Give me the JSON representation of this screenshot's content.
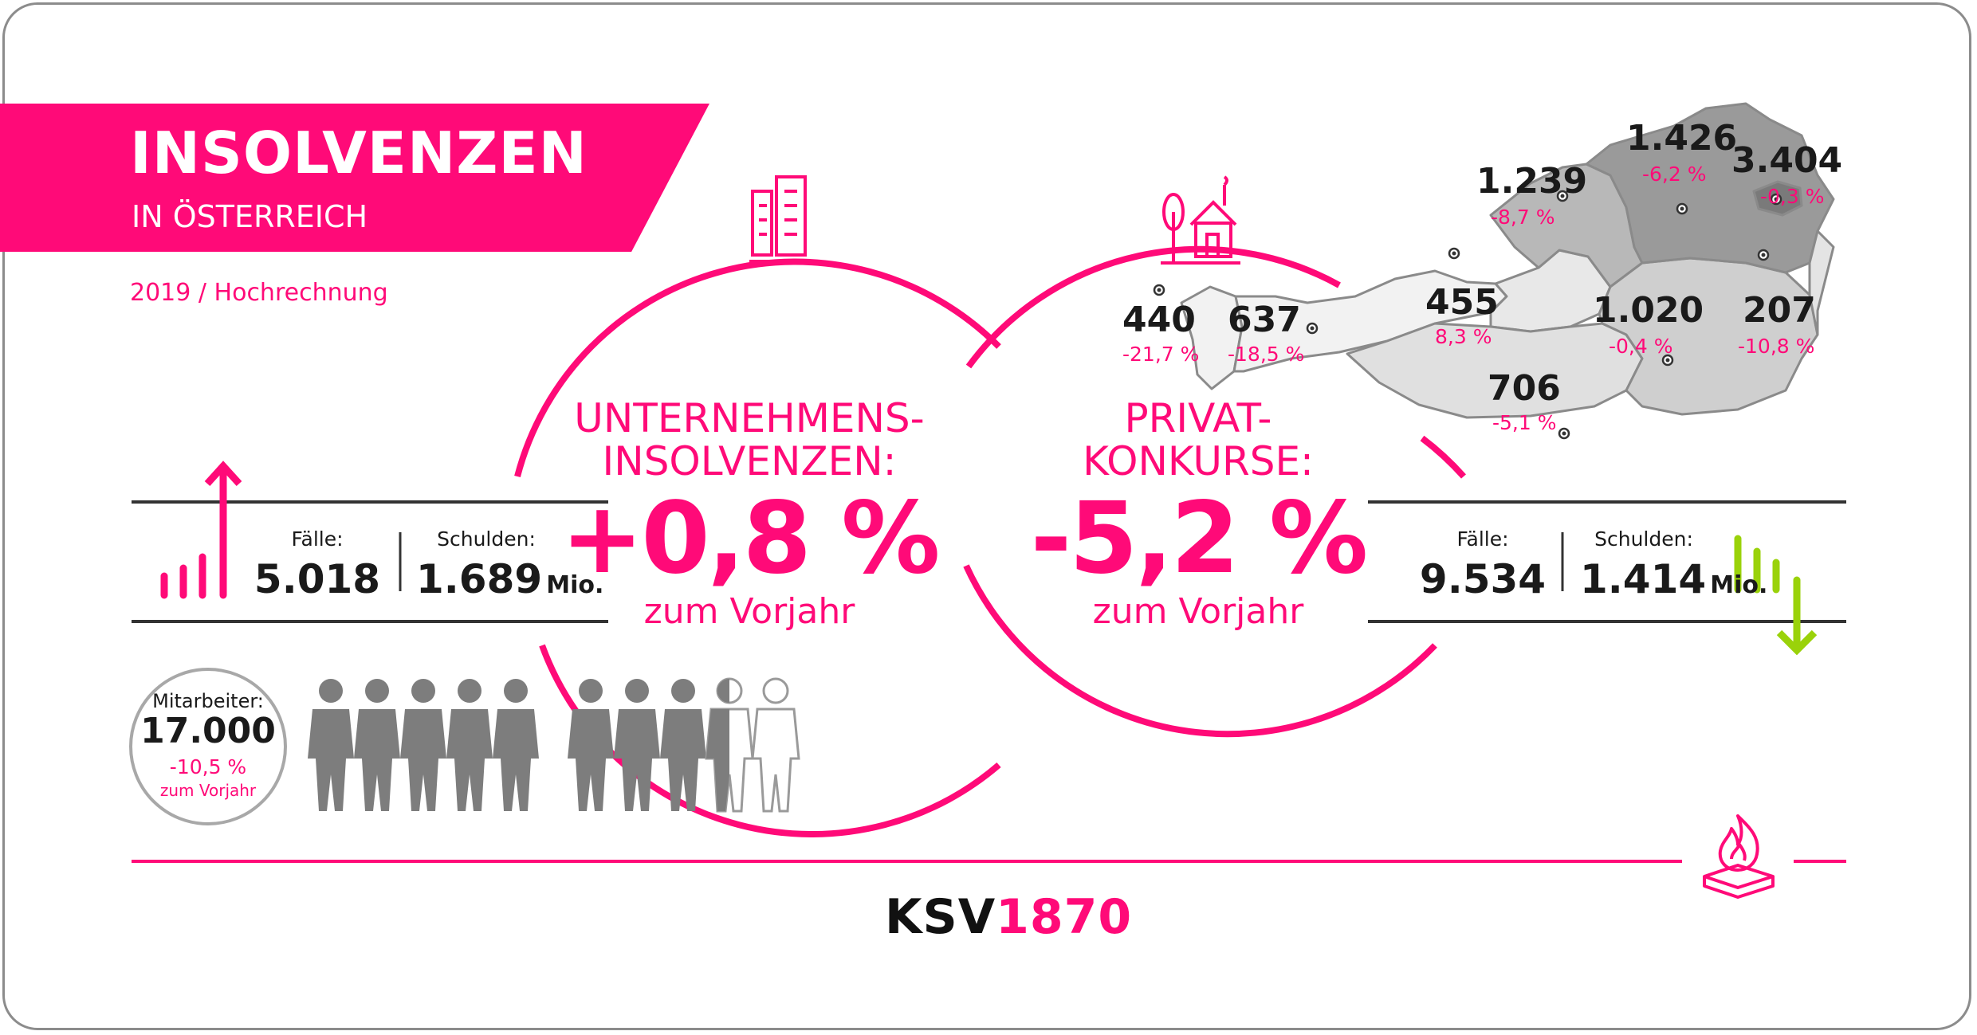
{
  "header": {
    "title": "INSOLVENZEN",
    "subtitle": "IN ÖSTERREICH",
    "year_note": "2019 / Hochrechnung"
  },
  "companies": {
    "label_line1": "UNTERNEHMENS-",
    "label_line2": "INSOLVENZEN:",
    "percent": "+0,8 %",
    "vs_prev": "zum Vorjahr",
    "cases_label": "Fälle:",
    "cases_value": "5.018",
    "debt_label": "Schulden:",
    "debt_value": "1.689",
    "debt_unit": "Mio."
  },
  "private": {
    "label_line1": "PRIVAT-",
    "label_line2": "KONKURSE:",
    "percent": "-5,2 %",
    "vs_prev": "zum Vorjahr",
    "cases_label": "Fälle:",
    "cases_value": "9.534",
    "debt_label": "Schulden:",
    "debt_value": "1.414",
    "debt_unit": "Mio."
  },
  "employees": {
    "label": "Mitarbeiter:",
    "value": "17.000",
    "change": "-10,5 %",
    "vs_prev": "zum Vorjahr",
    "icon": "people-icons"
  },
  "regions": [
    {
      "count": "440",
      "change": "-21,7 %"
    },
    {
      "count": "637",
      "change": "-18,5 %"
    },
    {
      "count": "455",
      "change": "8,3 %"
    },
    {
      "count": "706",
      "change": "-5,1 %"
    },
    {
      "count": "1.239",
      "change": "-8,7 %"
    },
    {
      "count": "1.426",
      "change": "-6,2 %"
    },
    {
      "count": "3.404",
      "change": "-0,3 %"
    },
    {
      "count": "1.020",
      "change": "-0,4 %"
    },
    {
      "count": "207",
      "change": "-10,8 %"
    }
  ],
  "logo": {
    "part1": "KSV",
    "part2": "1870"
  },
  "colors": {
    "accent": "#ff0a78",
    "green": "#9ad20a",
    "gray": "#808080",
    "map_light": "#d4d4d4",
    "map_mid": "#b3b3b3",
    "map_dark": "#9a9a9a",
    "map_darker": "#7d7d7d"
  },
  "icons": [
    "buildings-icon",
    "house-tree-icon",
    "rising-bars-arrow-icon",
    "falling-bars-arrow-icon",
    "flame-stack-icon",
    "austria-map"
  ]
}
